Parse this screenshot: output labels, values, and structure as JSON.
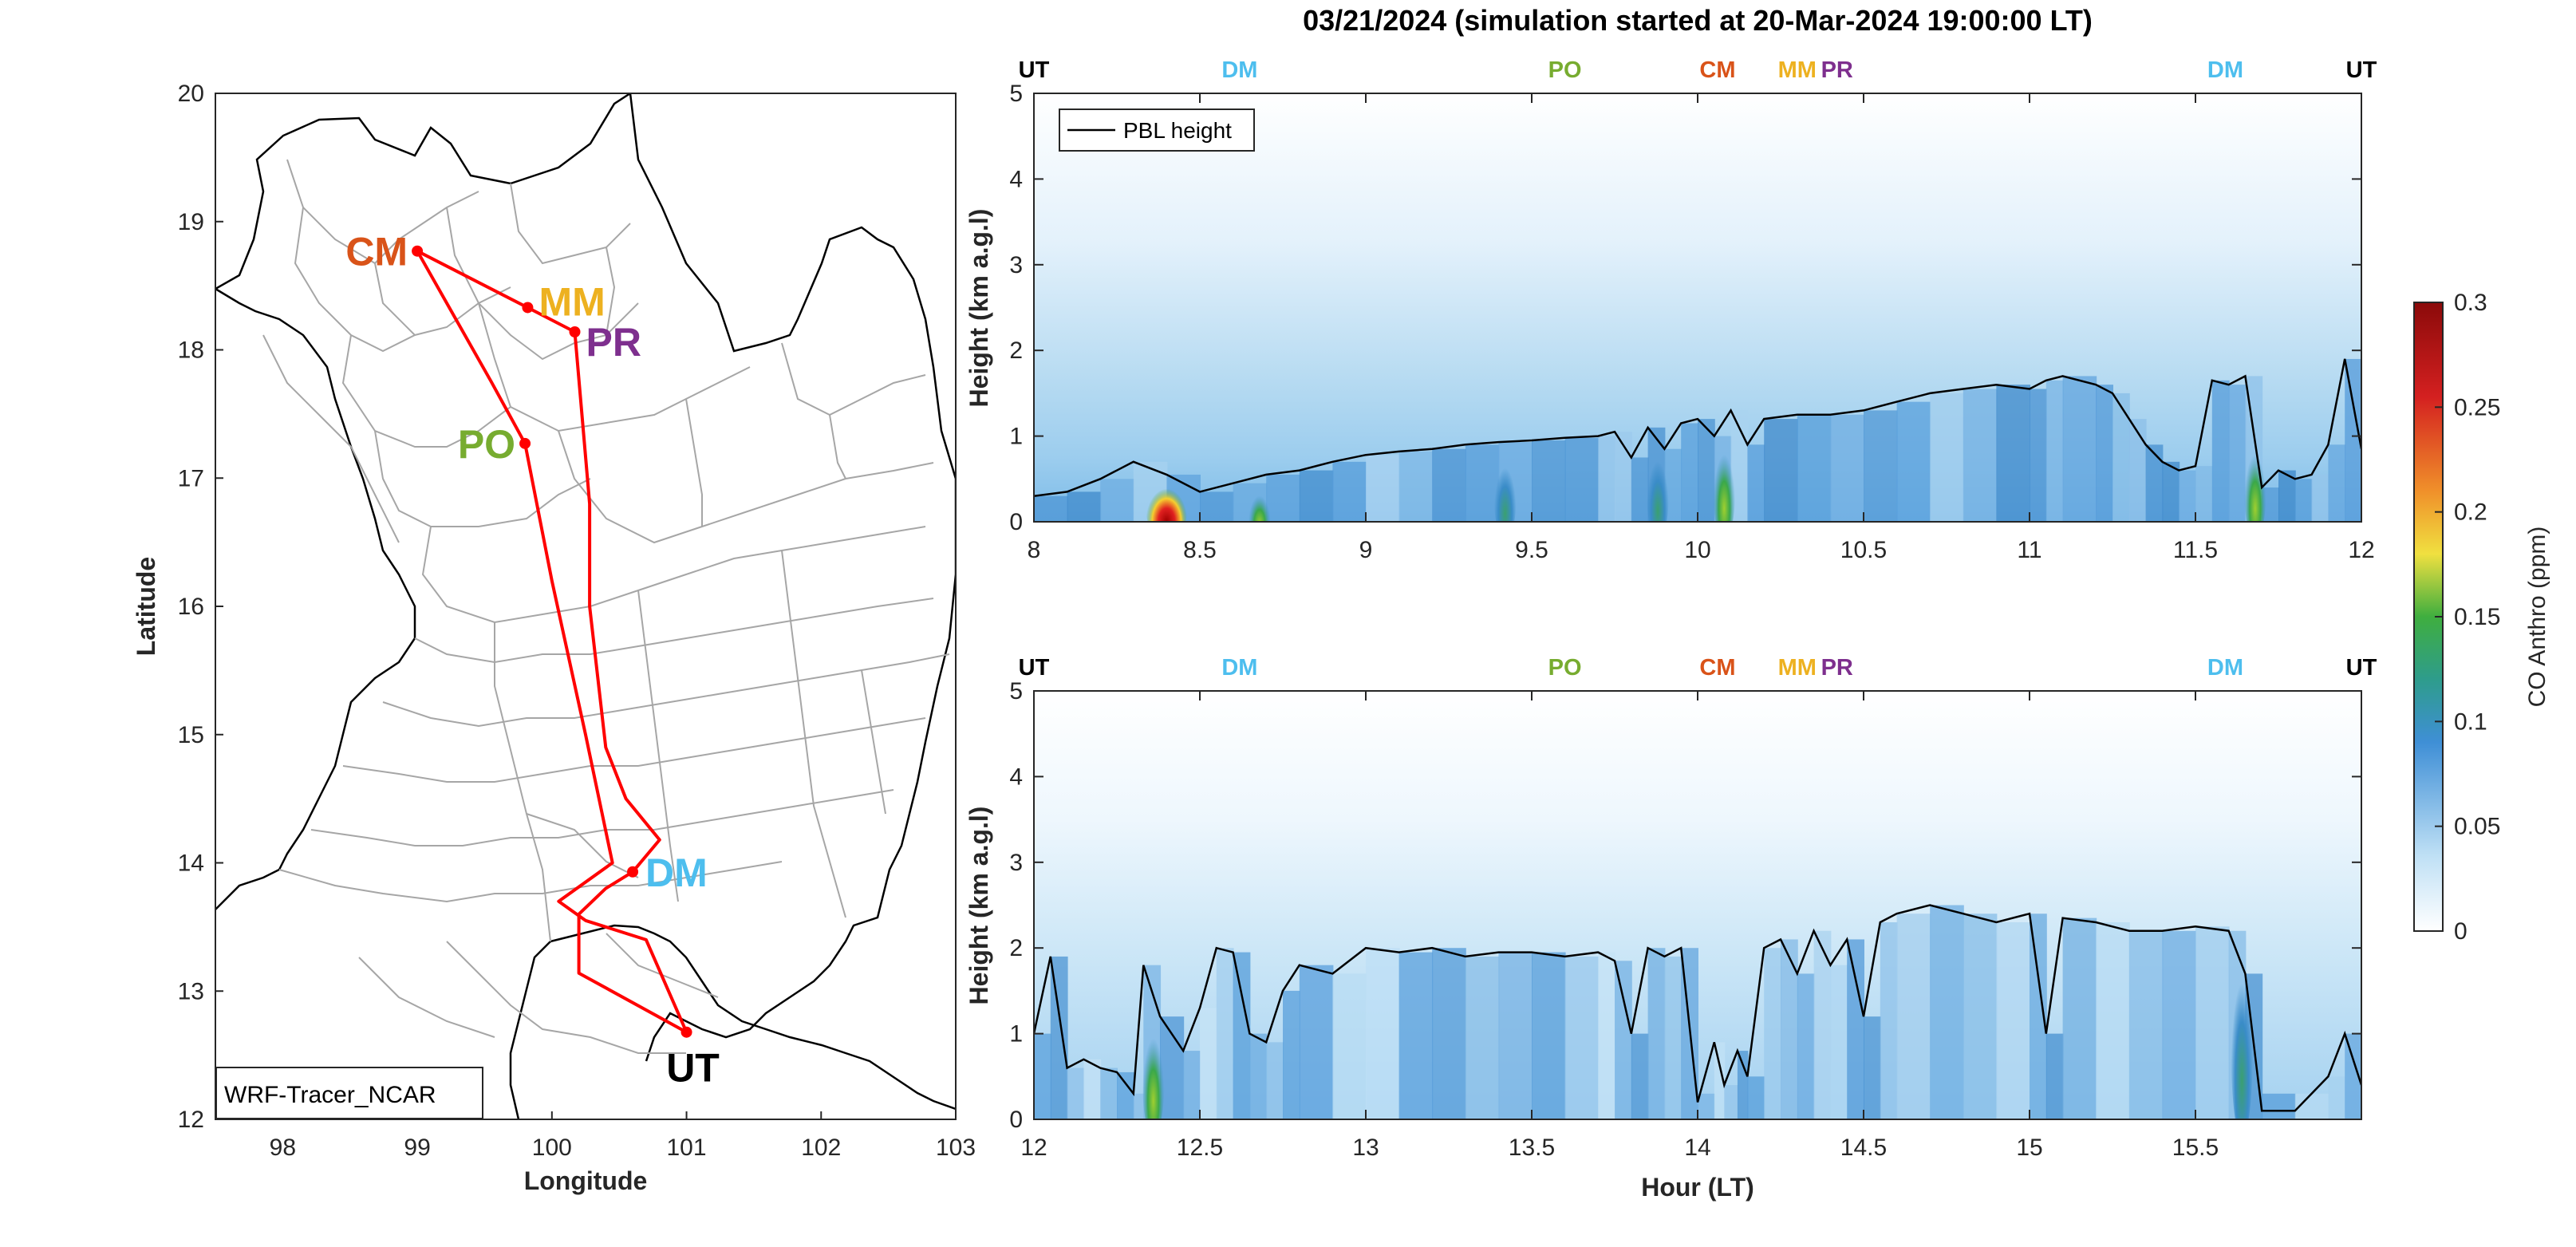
{
  "title": "03/21/2024 (simulation started at 20-Mar-2024 19:00:00 LT)",
  "colors": {
    "CM": "#d95319",
    "MM": "#edb120",
    "PR": "#7e2f8e",
    "PO": "#77ac30",
    "DM": "#4dbeee",
    "UT": "#000000",
    "route": "#ff0000",
    "border": "#000000",
    "provinces": "#a6a6a6",
    "pbl": "#000000"
  },
  "map": {
    "xlabel": "Longitude",
    "ylabel": "Latitude",
    "xlim": [
      97.5,
      103
    ],
    "ylim": [
      12,
      20
    ],
    "xticks": [
      "98",
      "99",
      "100",
      "101",
      "102",
      "103"
    ],
    "yticks": [
      "12",
      "13",
      "14",
      "15",
      "16",
      "17",
      "18",
      "19",
      "20"
    ],
    "legend_box": "WRF-Tracer_NCAR",
    "stations": [
      {
        "code": "CM",
        "lon": 99.0,
        "lat": 18.77
      },
      {
        "code": "MM",
        "lon": 99.82,
        "lat": 18.33
      },
      {
        "code": "PR",
        "lon": 100.17,
        "lat": 18.14
      },
      {
        "code": "PO",
        "lon": 99.8,
        "lat": 17.27
      },
      {
        "code": "DM",
        "lon": 100.6,
        "lat": 13.93
      },
      {
        "code": "UT",
        "lon": 101.0,
        "lat": 12.68
      }
    ],
    "route": [
      [
        101.0,
        12.68
      ],
      [
        100.2,
        13.14
      ],
      [
        100.2,
        13.6
      ],
      [
        100.4,
        13.8
      ],
      [
        100.6,
        13.93
      ],
      [
        100.8,
        14.18
      ],
      [
        100.55,
        14.5
      ],
      [
        100.4,
        14.9
      ],
      [
        100.28,
        16.0
      ],
      [
        100.28,
        16.8
      ],
      [
        100.17,
        18.14
      ],
      [
        99.82,
        18.33
      ],
      [
        99.0,
        18.77
      ],
      [
        99.55,
        17.75
      ],
      [
        99.8,
        17.27
      ],
      [
        100.0,
        16.2
      ],
      [
        100.25,
        15.0
      ],
      [
        100.45,
        14.0
      ],
      [
        100.05,
        13.7
      ],
      [
        100.25,
        13.55
      ],
      [
        100.7,
        13.4
      ],
      [
        101.0,
        12.68
      ]
    ]
  },
  "colorbar": {
    "label": "CO Anthro (ppm)",
    "ticks": [
      "0",
      "0.05",
      "0.1",
      "0.15",
      "0.2",
      "0.25",
      "0.3"
    ],
    "range": [
      0,
      0.3
    ]
  },
  "panel_top": {
    "ylabel": "Height (km a.g.l)",
    "legend": "PBL height",
    "xlim": [
      8,
      12
    ],
    "ylim": [
      0,
      5
    ],
    "xticks": [
      "8",
      "8.5",
      "9",
      "9.5",
      "10",
      "10.5",
      "11",
      "11.5",
      "12"
    ],
    "yticks": [
      "0",
      "1",
      "2",
      "3",
      "4",
      "5"
    ],
    "stop_labels": [
      {
        "text": "UT",
        "color": "#000000",
        "hour": 8.0
      },
      {
        "text": "DM",
        "color": "#4dbeee",
        "hour": 8.62
      },
      {
        "text": "PO",
        "color": "#77ac30",
        "hour": 9.6
      },
      {
        "text": "CM",
        "color": "#d95319",
        "hour": 10.06
      },
      {
        "text": "MM",
        "color": "#edb120",
        "hour": 10.3
      },
      {
        "text": "PR",
        "color": "#7e2f8e",
        "hour": 10.42
      },
      {
        "text": "DM",
        "color": "#4dbeee",
        "hour": 11.59
      },
      {
        "text": "UT",
        "color": "#000000",
        "hour": 12.0
      }
    ]
  },
  "panel_bottom": {
    "ylabel": "Height (km a.g.l)",
    "xlabel": "Hour (LT)",
    "xlim": [
      12,
      16
    ],
    "ylim": [
      0,
      5
    ],
    "xticks": [
      "12",
      "12.5",
      "13",
      "13.5",
      "14",
      "14.5",
      "15",
      "15.5"
    ],
    "yticks": [
      "0",
      "1",
      "2",
      "3",
      "4",
      "5"
    ],
    "stop_labels": [
      {
        "text": "UT",
        "color": "#000000",
        "hour": 12.0
      },
      {
        "text": "DM",
        "color": "#4dbeee",
        "hour": 12.62
      },
      {
        "text": "PO",
        "color": "#77ac30",
        "hour": 13.6
      },
      {
        "text": "CM",
        "color": "#d95319",
        "hour": 14.06
      },
      {
        "text": "MM",
        "color": "#edb120",
        "hour": 14.3
      },
      {
        "text": "PR",
        "color": "#7e2f8e",
        "hour": 14.42
      },
      {
        "text": "DM",
        "color": "#4dbeee",
        "hour": 15.59
      },
      {
        "text": "UT",
        "color": "#000000",
        "hour": 16.0
      }
    ]
  },
  "chart_data": [
    {
      "type": "line",
      "title": "03/21/2024 (simulation started at 20-Mar-2024 19:00:00 LT)",
      "series": [
        {
          "name": "PBL height",
          "x": [
            8.0,
            8.1,
            8.2,
            8.3,
            8.4,
            8.5,
            8.6,
            8.7,
            8.8,
            8.9,
            9.0,
            9.1,
            9.2,
            9.3,
            9.4,
            9.5,
            9.6,
            9.7,
            9.75,
            9.8,
            9.85,
            9.9,
            9.95,
            10.0,
            10.05,
            10.1,
            10.15,
            10.2,
            10.3,
            10.4,
            10.5,
            10.6,
            10.7,
            10.8,
            10.9,
            11.0,
            11.05,
            11.1,
            11.2,
            11.25,
            11.3,
            11.35,
            11.4,
            11.45,
            11.5,
            11.55,
            11.6,
            11.65,
            11.7,
            11.75,
            11.8,
            11.85,
            11.9,
            11.95,
            12.0
          ],
          "y": [
            0.3,
            0.35,
            0.5,
            0.7,
            0.55,
            0.35,
            0.45,
            0.55,
            0.6,
            0.7,
            0.78,
            0.82,
            0.85,
            0.9,
            0.93,
            0.95,
            0.98,
            1.0,
            1.05,
            0.75,
            1.1,
            0.85,
            1.15,
            1.2,
            1.0,
            1.3,
            0.9,
            1.2,
            1.25,
            1.25,
            1.3,
            1.4,
            1.5,
            1.55,
            1.6,
            1.55,
            1.65,
            1.7,
            1.6,
            1.5,
            1.2,
            0.9,
            0.7,
            0.6,
            0.65,
            1.65,
            1.6,
            1.7,
            0.4,
            0.6,
            0.5,
            0.55,
            0.9,
            1.9,
            0.85
          ],
          "color": "#000000"
        }
      ],
      "xlim": [
        8,
        12
      ],
      "ylim": [
        0,
        5
      ],
      "ylabel": "Height (km a.g.l)",
      "heatmap": {
        "quantity": "CO Anthro (ppm)",
        "hotspots": [
          {
            "x": 8.4,
            "y_top": 0.5,
            "value": 0.3
          },
          {
            "x": 8.68,
            "y_top": 0.4,
            "value": 0.13
          },
          {
            "x": 9.42,
            "y_top": 0.8,
            "value": 0.11
          },
          {
            "x": 9.88,
            "y_top": 0.9,
            "value": 0.12
          },
          {
            "x": 10.08,
            "y_top": 1.0,
            "value": 0.13
          },
          {
            "x": 11.68,
            "y_top": 1.0,
            "value": 0.17
          }
        ],
        "background_near_surface": 0.07
      }
    },
    {
      "type": "line",
      "series": [
        {
          "name": "PBL height",
          "x": [
            12.0,
            12.05,
            12.1,
            12.15,
            12.2,
            12.25,
            12.3,
            12.33,
            12.38,
            12.45,
            12.5,
            12.55,
            12.6,
            12.65,
            12.7,
            12.75,
            12.8,
            12.9,
            13.0,
            13.1,
            13.2,
            13.3,
            13.4,
            13.5,
            13.6,
            13.7,
            13.75,
            13.8,
            13.85,
            13.9,
            13.95,
            14.0,
            14.05,
            14.08,
            14.12,
            14.15,
            14.2,
            14.25,
            14.3,
            14.35,
            14.4,
            14.45,
            14.5,
            14.55,
            14.6,
            14.7,
            14.8,
            14.9,
            15.0,
            15.05,
            15.1,
            15.2,
            15.3,
            15.4,
            15.5,
            15.6,
            15.65,
            15.7,
            15.8,
            15.9,
            15.95,
            16.0
          ],
          "y": [
            1.0,
            1.9,
            0.6,
            0.7,
            0.6,
            0.55,
            0.3,
            1.8,
            1.2,
            0.8,
            1.3,
            2.0,
            1.95,
            1.0,
            0.9,
            1.5,
            1.8,
            1.7,
            2.0,
            1.95,
            2.0,
            1.9,
            1.95,
            1.95,
            1.9,
            1.95,
            1.85,
            1.0,
            2.0,
            1.9,
            2.0,
            0.2,
            0.9,
            0.4,
            0.8,
            0.5,
            2.0,
            2.1,
            1.7,
            2.2,
            1.8,
            2.1,
            1.2,
            2.3,
            2.4,
            2.5,
            2.4,
            2.3,
            2.4,
            1.0,
            2.35,
            2.3,
            2.2,
            2.2,
            2.25,
            2.2,
            1.7,
            0.1,
            0.1,
            0.5,
            1.0,
            0.4
          ],
          "color": "#000000"
        }
      ],
      "xlim": [
        12,
        16
      ],
      "ylim": [
        0,
        5
      ],
      "xlabel": "Hour (LT)",
      "ylabel": "Height (km a.g.l)",
      "heatmap": {
        "quantity": "CO Anthro (ppm)",
        "hotspots": [
          {
            "x": 12.36,
            "y_top": 1.2,
            "value": 0.13
          },
          {
            "x": 15.64,
            "y_top": 2.0,
            "value": 0.12
          }
        ],
        "background_near_surface": 0.06
      }
    }
  ]
}
